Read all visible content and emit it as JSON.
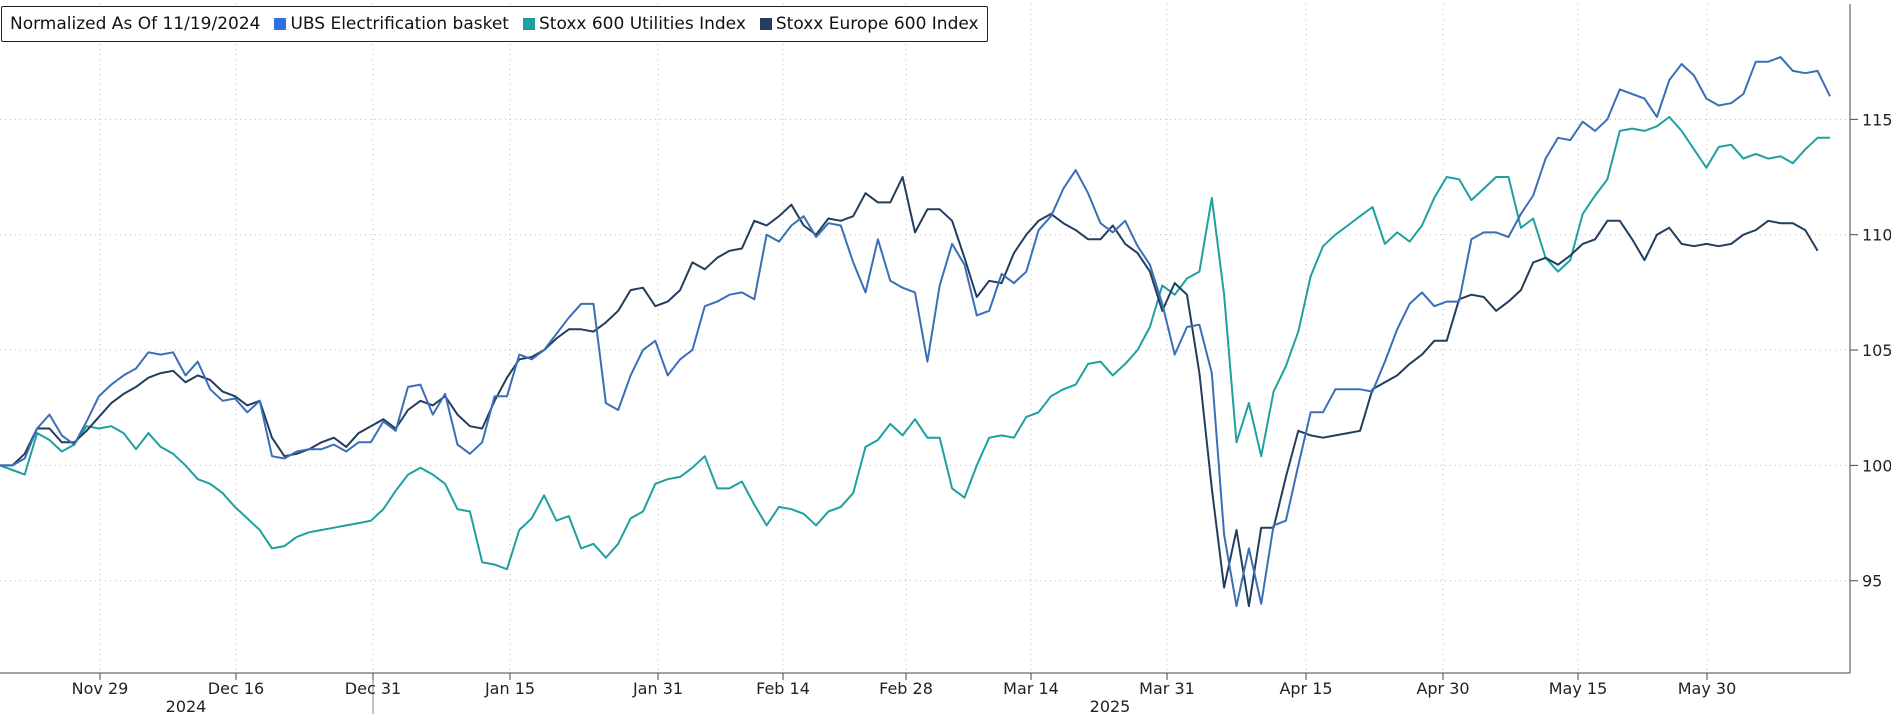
{
  "chart_data": {
    "type": "line",
    "title": "Normalized As Of 11/19/2024",
    "y_axis": {
      "ylim": [
        91,
        120
      ],
      "ticks": [
        95,
        100,
        105,
        110,
        115
      ],
      "position": "right",
      "grid": true
    },
    "x_axis": {
      "tick_labels": [
        "Nov 29",
        "Dec 16",
        "Dec 31",
        "Jan 15",
        "Jan 31",
        "Feb 14",
        "Feb 28",
        "Mar 14",
        "Mar 31",
        "Apr 15",
        "Apr 30",
        "May 15",
        "May 30"
      ],
      "year_labels": [
        "2024",
        "2025"
      ],
      "grid": true
    },
    "legend_position": "top-left",
    "series": [
      {
        "name": "UBS Electrification basket",
        "color": "#3a6fb8",
        "values": [
          100.0,
          100.0,
          100.3,
          101.6,
          102.2,
          101.3,
          100.9,
          101.9,
          103.0,
          103.5,
          103.9,
          104.2,
          104.9,
          104.8,
          104.9,
          103.9,
          104.5,
          103.3,
          102.8,
          102.9,
          102.3,
          102.8,
          100.4,
          100.3,
          100.6,
          100.7,
          100.7,
          100.9,
          100.6,
          101.0,
          101.0,
          101.9,
          101.5,
          103.4,
          103.5,
          102.2,
          103.1,
          100.9,
          100.5,
          101.0,
          103.0,
          103.0,
          104.8,
          104.6,
          105.0,
          105.7,
          106.4,
          107.0,
          107.0,
          102.7,
          102.4,
          103.9,
          105.0,
          105.4,
          103.9,
          104.6,
          105.0,
          106.9,
          107.1,
          107.4,
          107.5,
          107.2,
          110.0,
          109.7,
          110.4,
          110.8,
          109.9,
          110.5,
          110.4,
          108.8,
          107.5,
          109.8,
          108.0,
          107.7,
          107.5,
          104.5,
          107.8,
          109.6,
          108.7,
          106.5,
          106.7,
          108.3,
          107.9,
          108.4,
          110.2,
          110.8,
          112.0,
          112.8,
          111.8,
          110.5,
          110.1,
          110.6,
          109.5,
          108.7,
          107.0,
          104.8,
          106.0,
          106.1,
          104.0,
          97.0,
          93.9,
          96.4,
          94.0,
          97.4,
          97.6,
          100.0,
          102.3,
          102.3,
          103.3,
          103.3,
          103.3,
          103.2,
          104.5,
          105.9,
          107.0,
          107.5,
          106.9,
          107.1,
          107.1,
          109.8,
          110.1,
          110.1,
          109.9,
          110.9,
          111.7,
          113.3,
          114.2,
          114.1,
          114.9,
          114.5,
          115.0,
          116.3,
          116.1,
          115.9,
          115.1,
          116.7,
          117.4,
          116.9,
          115.9,
          115.6,
          115.7,
          116.1,
          117.5,
          117.5,
          117.7,
          117.1,
          117.0,
          117.1,
          116.0
        ]
      },
      {
        "name": "Stoxx 600 Utilities Index",
        "color": "#1fa0a0",
        "values": [
          100.0,
          99.8,
          99.6,
          101.4,
          101.1,
          100.6,
          100.9,
          101.7,
          101.6,
          101.7,
          101.4,
          100.7,
          101.4,
          100.8,
          100.5,
          100.0,
          99.4,
          99.2,
          98.8,
          98.2,
          97.7,
          97.2,
          96.4,
          96.5,
          96.9,
          97.1,
          97.2,
          97.3,
          97.4,
          97.5,
          97.6,
          98.1,
          98.9,
          99.6,
          99.9,
          99.6,
          99.2,
          98.1,
          98.0,
          95.8,
          95.7,
          95.5,
          97.2,
          97.7,
          98.7,
          97.6,
          97.8,
          96.4,
          96.6,
          96.0,
          96.6,
          97.7,
          98.0,
          99.2,
          99.4,
          99.5,
          99.9,
          100.4,
          99.0,
          99.0,
          99.3,
          98.3,
          97.4,
          98.2,
          98.1,
          97.9,
          97.4,
          98.0,
          98.2,
          98.8,
          100.8,
          101.1,
          101.8,
          101.3,
          102.0,
          101.2,
          101.2,
          99.0,
          98.6,
          100.0,
          101.2,
          101.3,
          101.2,
          102.1,
          102.3,
          103.0,
          103.3,
          103.5,
          104.4,
          104.5,
          103.9,
          104.4,
          105.0,
          106.0,
          107.8,
          107.4,
          108.1,
          108.4,
          111.6,
          107.4,
          101.0,
          102.7,
          100.4,
          103.2,
          104.3,
          105.8,
          108.2,
          109.5,
          110.0,
          110.4,
          110.8,
          111.2,
          109.6,
          110.1,
          109.7,
          110.4,
          111.6,
          112.5,
          112.4,
          111.5,
          112.0,
          112.5,
          112.5,
          110.3,
          110.7,
          109.0,
          108.4,
          108.9,
          110.9,
          111.7,
          112.4,
          114.5,
          114.6,
          114.5,
          114.7,
          115.1,
          114.5,
          113.7,
          112.9,
          113.8,
          113.9,
          113.3,
          113.5,
          113.3,
          113.4,
          113.1,
          113.7,
          114.2,
          114.2
        ]
      },
      {
        "name": "Stoxx Europe 600 Index",
        "color": "#233d5c",
        "values": [
          100.0,
          100.0,
          100.5,
          101.6,
          101.6,
          101.0,
          101.0,
          101.5,
          102.1,
          102.7,
          103.1,
          103.4,
          103.8,
          104.0,
          104.1,
          103.6,
          103.9,
          103.7,
          103.2,
          103.0,
          102.6,
          102.8,
          101.2,
          100.4,
          100.5,
          100.7,
          101.0,
          101.2,
          100.8,
          101.4,
          101.7,
          102.0,
          101.6,
          102.4,
          102.8,
          102.6,
          103.0,
          102.2,
          101.7,
          101.6,
          102.8,
          103.8,
          104.6,
          104.7,
          105.0,
          105.5,
          105.9,
          105.9,
          105.8,
          106.2,
          106.7,
          107.6,
          107.7,
          106.9,
          107.1,
          107.6,
          108.8,
          108.5,
          109.0,
          109.3,
          109.4,
          110.6,
          110.4,
          110.8,
          111.3,
          110.4,
          110.0,
          110.7,
          110.6,
          110.8,
          111.8,
          111.4,
          111.4,
          112.5,
          110.1,
          111.1,
          111.1,
          110.6,
          109.0,
          107.3,
          108.0,
          107.9,
          109.2,
          110.0,
          110.6,
          110.9,
          110.5,
          110.2,
          109.8,
          109.8,
          110.4,
          109.6,
          109.2,
          108.4,
          106.7,
          107.9,
          107.4,
          104.0,
          99.0,
          94.7,
          97.2,
          93.9,
          97.3,
          97.3,
          99.5,
          101.5,
          101.3,
          101.2,
          101.3,
          101.4,
          101.5,
          103.3,
          103.6,
          103.9,
          104.4,
          104.8,
          105.4,
          105.4,
          107.2,
          107.4,
          107.3,
          106.7,
          107.1,
          107.6,
          108.8,
          109.0,
          108.7,
          109.1,
          109.6,
          109.8,
          110.6,
          110.6,
          109.8,
          108.9,
          110.0,
          110.3,
          109.6,
          109.5,
          109.6,
          109.5,
          109.6,
          110.0,
          110.2,
          110.6,
          110.5,
          110.5,
          110.2,
          109.3
        ]
      }
    ]
  }
}
